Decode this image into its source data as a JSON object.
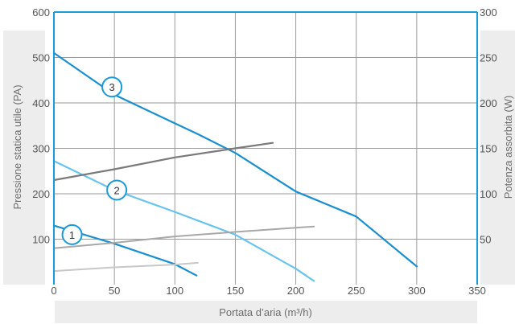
{
  "chart_data": {
    "type": "line",
    "xlabel": "Portata d’aria (m³/h)",
    "ylabel": "Pressione statica utile (PA)",
    "y2label": "Potenza assorbita (W)",
    "xlim": [
      0,
      350
    ],
    "ylim": [
      0,
      600
    ],
    "y2lim": [
      0,
      300
    ],
    "xticks": [
      0,
      50,
      100,
      150,
      200,
      250,
      300,
      350
    ],
    "yticks": [
      100,
      200,
      300,
      400,
      500,
      600
    ],
    "y2ticks": [
      50,
      100,
      150,
      200,
      250,
      300
    ],
    "grid": true,
    "colors": {
      "axis": "#1a9ad6",
      "grid": "#9a9a9a",
      "label_band": "#ededed",
      "marker_fill": "#ffffff"
    },
    "series": [
      {
        "name": "3",
        "axis": "left",
        "color": "#1a8fd0",
        "width": 2.2,
        "x": [
          0,
          50,
          100,
          120,
          150,
          200,
          250,
          300
        ],
        "y": [
          510,
          418,
          355,
          330,
          290,
          205,
          150,
          40
        ]
      },
      {
        "name": "2",
        "axis": "left",
        "color": "#68c3ef",
        "width": 2.2,
        "x": [
          0,
          50,
          100,
          150,
          200,
          215
        ],
        "y": [
          272,
          208,
          160,
          110,
          35,
          8
        ]
      },
      {
        "name": "1",
        "axis": "left",
        "color": "#1a8fd0",
        "width": 2.2,
        "x": [
          0,
          50,
          100,
          118
        ],
        "y": [
          130,
          90,
          45,
          20
        ]
      },
      {
        "axis": "right",
        "color": "#7a7a7a",
        "width": 2.2,
        "x": [
          0,
          50,
          100,
          150,
          181
        ],
        "y": [
          115,
          127,
          140,
          150,
          156
        ]
      },
      {
        "axis": "right",
        "color": "#a8a8a8",
        "width": 2,
        "x": [
          0,
          50,
          100,
          150,
          215
        ],
        "y": [
          40,
          46,
          53,
          58,
          64
        ]
      },
      {
        "axis": "right",
        "color": "#c8c8c8",
        "width": 2,
        "x": [
          0,
          50,
          100,
          119
        ],
        "y": [
          15,
          19,
          22,
          24
        ]
      }
    ],
    "markers": [
      {
        "label": "3",
        "x": 48,
        "y": 435
      },
      {
        "label": "2",
        "x": 52,
        "y": 208
      },
      {
        "label": "1",
        "x": 15,
        "y": 110
      }
    ]
  }
}
